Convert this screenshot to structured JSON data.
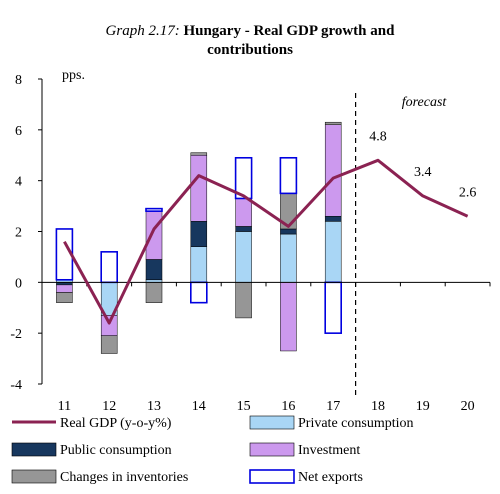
{
  "chart_data": {
    "type": "bar",
    "title_prefix": "Graph 2.17:",
    "title_line1": "Hungary - Real GDP growth and",
    "title_line2": "contributions",
    "ylabel": "pps.",
    "ylim": [
      -4,
      8
    ],
    "yticks": [
      "-4",
      "-2",
      "0",
      "2",
      "4",
      "6",
      "8"
    ],
    "categories": [
      "11",
      "12",
      "13",
      "14",
      "15",
      "16",
      "17",
      "18",
      "19",
      "20"
    ],
    "forecast_label": "forecast",
    "series": [
      {
        "name": "Private consumption",
        "color": "#a9d6f5",
        "values": [
          0.1,
          -1.3,
          0.1,
          1.4,
          2.0,
          1.9,
          2.4,
          null,
          null,
          null
        ]
      },
      {
        "name": "Public consumption",
        "color": "#17375e",
        "values": [
          -0.1,
          0.0,
          0.8,
          1.0,
          0.2,
          0.2,
          0.2,
          null,
          null,
          null
        ]
      },
      {
        "name": "Investment",
        "color": "#cc99ee",
        "values": [
          -0.3,
          -0.8,
          1.9,
          2.6,
          1.1,
          -2.7,
          3.6,
          null,
          null,
          null
        ]
      },
      {
        "name": "Changes in inventories",
        "color": "#969696",
        "values": [
          -0.4,
          -0.7,
          -0.8,
          0.1,
          -1.4,
          1.4,
          0.1,
          null,
          null,
          null
        ]
      },
      {
        "name": "Net exports",
        "color": "#ffffff",
        "border": "#0000e0",
        "values": [
          2.0,
          1.2,
          0.1,
          -0.8,
          1.6,
          1.4,
          -2.0,
          null,
          null,
          null
        ]
      }
    ],
    "line": {
      "name": "Real GDP (y-o-y%)",
      "color": "#8b2252",
      "values": [
        1.6,
        -1.6,
        2.1,
        4.2,
        3.4,
        2.2,
        4.1,
        4.8,
        3.4,
        2.6
      ]
    },
    "point_labels": [
      {
        "index": 7,
        "text": "4.8"
      },
      {
        "index": 8,
        "text": "3.4"
      },
      {
        "index": 9,
        "text": "2.6"
      }
    ],
    "legend": [
      {
        "name": "Real GDP (y-o-y%)",
        "kind": "line",
        "color": "#8b2252"
      },
      {
        "name": "Private consumption",
        "kind": "box",
        "color": "#a9d6f5"
      },
      {
        "name": "Public consumption",
        "kind": "box",
        "color": "#17375e"
      },
      {
        "name": "Investment",
        "kind": "box",
        "color": "#cc99ee"
      },
      {
        "name": "Changes in inventories",
        "kind": "box",
        "color": "#969696"
      },
      {
        "name": "Net exports",
        "kind": "box",
        "color": "#ffffff",
        "border": "#0000e0"
      }
    ],
    "grid": false,
    "legend_position": "bottom"
  }
}
